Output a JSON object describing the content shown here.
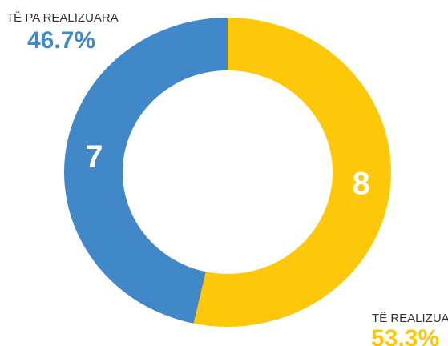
{
  "chart_data": {
    "type": "donut",
    "categories": [
      "TË REALIZUARA",
      "TË PA REALIZUARA"
    ],
    "values": [
      8,
      7
    ],
    "percentages": [
      53.3,
      46.7
    ],
    "percentage_labels": [
      "53.3%",
      "46.7%"
    ],
    "colors": [
      "#fdc80a",
      "#4188c9"
    ]
  }
}
